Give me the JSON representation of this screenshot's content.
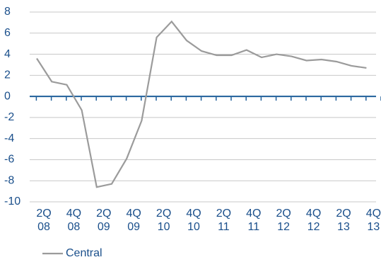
{
  "chart_data": {
    "type": "line",
    "categories": [
      "2Q 08",
      null,
      "4Q 08",
      null,
      "2Q 09",
      null,
      "4Q 09",
      null,
      "2Q 10",
      null,
      "4Q 10",
      null,
      "2Q 11",
      null,
      "4Q 11",
      null,
      "2Q 12",
      null,
      "4Q 12",
      null,
      "2Q 13",
      null,
      "4Q 13"
    ],
    "series": [
      {
        "name": "Central",
        "color": "#9b9b9b",
        "values": [
          3.6,
          1.4,
          1.1,
          -1.3,
          -8.6,
          -8.3,
          -5.9,
          -2.3,
          5.6,
          7.1,
          5.3,
          4.3,
          3.9,
          3.9,
          4.4,
          3.7,
          4.0,
          3.8,
          3.4,
          3.5,
          3.3,
          2.9,
          2.7
        ]
      }
    ],
    "ylim": [
      -10,
      8
    ],
    "yticks": [
      -10,
      -8,
      -6,
      -4,
      -2,
      0,
      2,
      4,
      6,
      8
    ],
    "grid": true,
    "legend": "bottom-left"
  }
}
